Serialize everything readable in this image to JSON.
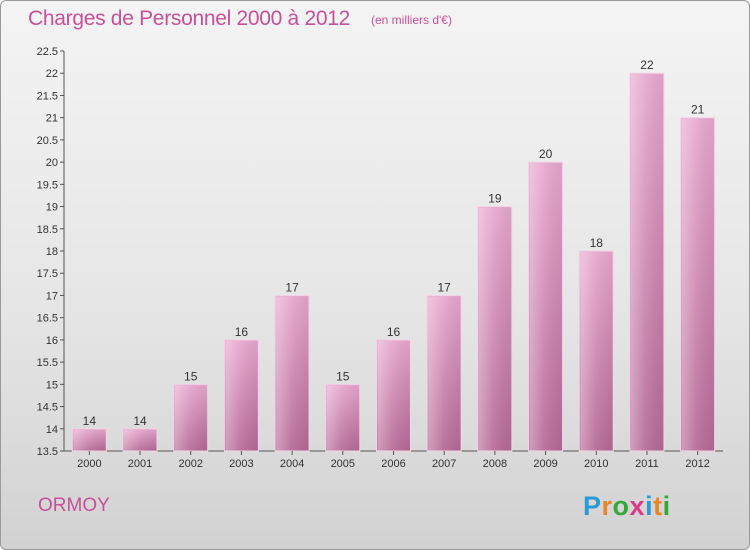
{
  "header": {
    "title": "Charges de Personnel 2000 à 2012",
    "unit": "(en milliers d'€)"
  },
  "footer": {
    "commune": "ORMOY",
    "logo": "Proxiti",
    "logo_colors": [
      "#2a9ad6",
      "#e8862a",
      "#3aa53a",
      "#d93a8a",
      "#2a9ad6",
      "#e8862a",
      "#3aa53a"
    ]
  },
  "chart_data": {
    "type": "bar",
    "title": "Charges de Personnel 2000 à 2012",
    "subtitle": "(en milliers d'€)",
    "categories": [
      "2000",
      "2001",
      "2002",
      "2003",
      "2004",
      "2005",
      "2006",
      "2007",
      "2008",
      "2009",
      "2010",
      "2011",
      "2012"
    ],
    "values": [
      14,
      14,
      15,
      16,
      17,
      15,
      16,
      17,
      19,
      20,
      18,
      22,
      21
    ],
    "ylim": [
      13.5,
      22.5
    ],
    "yticks": [
      "13.5",
      "14",
      "14.5",
      "15",
      "15.5",
      "16",
      "16.5",
      "17",
      "17.5",
      "18",
      "18.5",
      "19",
      "19.5",
      "20",
      "20.5",
      "21",
      "21.5",
      "22",
      "22.5"
    ],
    "bar_color": "#d98bb8",
    "grid": false
  }
}
